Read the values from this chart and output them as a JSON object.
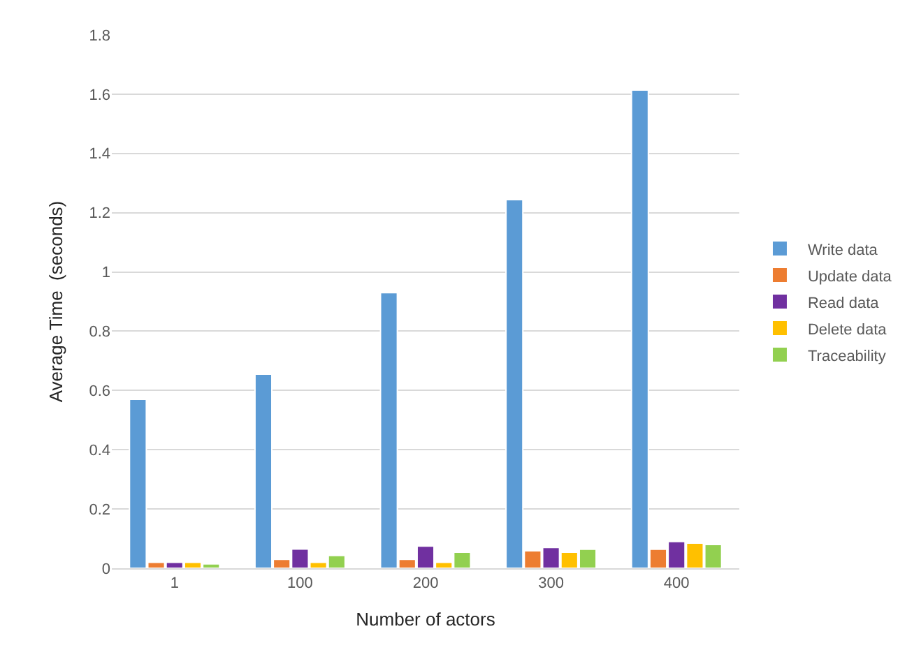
{
  "chart_data": {
    "type": "bar",
    "xlabel": "Number of actors",
    "ylabel": "Average Time  (seconds)",
    "categories": [
      "1",
      "100",
      "200",
      "300",
      "400"
    ],
    "series": [
      {
        "name": "Write data",
        "color": "#5b9bd5",
        "values": [
          0.57,
          0.655,
          0.93,
          1.244,
          1.614
        ]
      },
      {
        "name": "Update data",
        "color": "#ed7d31",
        "values": [
          0.02,
          0.03,
          0.03,
          0.059,
          0.064
        ]
      },
      {
        "name": "Read data",
        "color": "#7030a0",
        "values": [
          0.02,
          0.065,
          0.075,
          0.07,
          0.09
        ]
      },
      {
        "name": "Delete data",
        "color": "#ffc000",
        "values": [
          0.02,
          0.02,
          0.02,
          0.054,
          0.085
        ]
      },
      {
        "name": "Traceability",
        "color": "#92d050",
        "values": [
          0.015,
          0.043,
          0.054,
          0.064,
          0.08
        ]
      }
    ],
    "ylim": [
      0,
      1.8
    ],
    "yticks": [
      0,
      0.2,
      0.4,
      0.6,
      0.8,
      1,
      1.2,
      1.4,
      1.6,
      1.8
    ],
    "grid": "y",
    "legend": "right"
  }
}
